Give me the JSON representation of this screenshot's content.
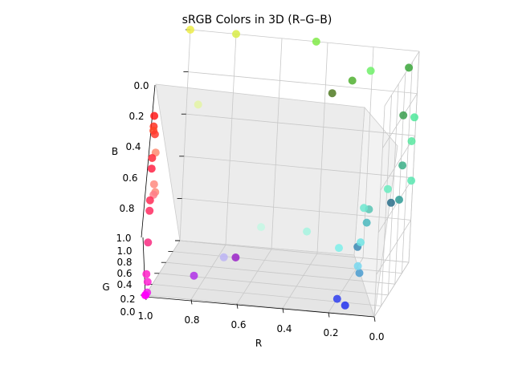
{
  "chart_data": {
    "type": "scatter",
    "title": "sRGB Colors in 3D (R–G–B)",
    "xlabel": "R",
    "ylabel": "G",
    "zlabel": "B",
    "xlim": [
      0,
      1
    ],
    "ylim": [
      0,
      1
    ],
    "zlim": [
      0,
      1
    ],
    "z_inverted": true,
    "grid": true,
    "x_ticks": [
      "0.0",
      "0.2",
      "0.4",
      "0.6",
      "0.8",
      "1.0"
    ],
    "y_ticks": [
      "0.0",
      "0.2",
      "0.4",
      "0.6",
      "0.8",
      "1.0"
    ],
    "z_ticks": [
      "0.0",
      "0.2",
      "0.4",
      "0.6",
      "0.8",
      "1.0"
    ],
    "points": [
      {
        "r": 1.0,
        "g": 1.0,
        "b": 0.0,
        "color": "#ecec48"
      },
      {
        "r": 0.8,
        "g": 1.0,
        "b": 0.0,
        "color": "#d8ec48"
      },
      {
        "r": 0.45,
        "g": 1.0,
        "b": 0.0,
        "color": "#80ea48"
      },
      {
        "r": 0.3,
        "g": 0.5,
        "b": 0.1,
        "color": "#507a22"
      },
      {
        "r": 0.25,
        "g": 0.75,
        "b": 0.1,
        "color": "#50b030"
      },
      {
        "r": 0.2,
        "g": 0.95,
        "b": 0.1,
        "color": "#6ef068"
      },
      {
        "r": 0.95,
        "g": 1.0,
        "b": 0.35,
        "color": "#e4f4a4"
      },
      {
        "r": 0.0,
        "g": 0.7,
        "b": 0.0,
        "color": "#3aa63a"
      },
      {
        "r": 0.0,
        "g": 0.6,
        "b": 0.2,
        "color": "#3a9e4e"
      },
      {
        "r": 0.0,
        "g": 0.95,
        "b": 0.3,
        "color": "#4ee89a"
      },
      {
        "r": 0.0,
        "g": 0.9,
        "b": 0.4,
        "color": "#58e8a0"
      },
      {
        "r": 0.0,
        "g": 0.65,
        "b": 0.45,
        "color": "#3aae86"
      },
      {
        "r": 0.0,
        "g": 0.95,
        "b": 0.6,
        "color": "#5ae8b2"
      },
      {
        "r": 0.0,
        "g": 0.6,
        "b": 0.6,
        "color": "#309c96"
      },
      {
        "r": 0.0,
        "g": 0.35,
        "b": 0.55,
        "color": "#2a6e8a"
      },
      {
        "r": 0.1,
        "g": 0.95,
        "b": 0.65,
        "color": "#68ecc0"
      },
      {
        "r": 0.15,
        "g": 0.75,
        "b": 0.7,
        "color": "#58c4b4"
      },
      {
        "r": 0.15,
        "g": 0.7,
        "b": 0.75,
        "color": "#4ab8be"
      },
      {
        "r": 0.2,
        "g": 0.95,
        "b": 0.75,
        "color": "#6ee8d0"
      },
      {
        "r": 0.15,
        "g": 0.45,
        "b": 0.8,
        "color": "#3a8ab4"
      },
      {
        "r": 0.2,
        "g": 0.9,
        "b": 0.9,
        "color": "#70e4e4"
      },
      {
        "r": 0.15,
        "g": 0.55,
        "b": 0.95,
        "color": "#4a9cd0"
      },
      {
        "r": 0.3,
        "g": 0.95,
        "b": 0.95,
        "color": "#7ef0ea"
      },
      {
        "r": 0.65,
        "g": 1.0,
        "b": 0.9,
        "color": "#c4f8e4"
      },
      {
        "r": 0.45,
        "g": 1.0,
        "b": 0.9,
        "color": "#a6f4e0"
      },
      {
        "r": 0.2,
        "g": 0.85,
        "b": 1.0,
        "color": "#78d8f0"
      },
      {
        "r": 0.2,
        "g": 0.25,
        "b": 1.0,
        "color": "#3040f0"
      },
      {
        "r": 0.15,
        "g": 0.15,
        "b": 1.0,
        "color": "#2233ee"
      },
      {
        "r": 0.75,
        "g": 0.6,
        "b": 0.95,
        "color": "#bcb4f4"
      },
      {
        "r": 0.65,
        "g": 0.25,
        "b": 0.85,
        "color": "#9a22c8"
      },
      {
        "r": 0.8,
        "g": 0.05,
        "b": 0.9,
        "color": "#b030e8"
      },
      {
        "r": 1.0,
        "g": 0.0,
        "b": 0.15,
        "color": "#ff1a1a"
      },
      {
        "r": 1.0,
        "g": 0.0,
        "b": 0.2,
        "color": "#ff3322"
      },
      {
        "r": 1.0,
        "g": 0.0,
        "b": 0.22,
        "color": "#ff4424"
      },
      {
        "r": 1.0,
        "g": 0.05,
        "b": 0.25,
        "color": "#ff3a2e"
      },
      {
        "r": 1.0,
        "g": 0.1,
        "b": 0.35,
        "color": "#ff8a70"
      },
      {
        "r": 1.0,
        "g": 0.0,
        "b": 0.35,
        "color": "#ff2a3a"
      },
      {
        "r": 1.0,
        "g": 0.0,
        "b": 0.4,
        "color": "#ff2244"
      },
      {
        "r": 1.0,
        "g": 0.1,
        "b": 0.5,
        "color": "#ff8a7e"
      },
      {
        "r": 1.0,
        "g": 0.15,
        "b": 0.55,
        "color": "#ff8878"
      },
      {
        "r": 1.0,
        "g": 0.1,
        "b": 0.55,
        "color": "#ff7e88"
      },
      {
        "r": 1.0,
        "g": 0.0,
        "b": 0.55,
        "color": "#ff2a55"
      },
      {
        "r": 1.0,
        "g": 0.0,
        "b": 0.6,
        "color": "#ff2a60"
      },
      {
        "r": 1.0,
        "g": 0.0,
        "b": 0.75,
        "color": "#f82a80"
      },
      {
        "r": 1.0,
        "g": 0.0,
        "b": 0.9,
        "color": "#ff20c8"
      },
      {
        "r": 1.0,
        "g": 0.05,
        "b": 0.95,
        "color": "#ff22d2"
      },
      {
        "r": 1.0,
        "g": 0.0,
        "b": 1.0,
        "color": "#ff1ad0"
      },
      {
        "r": 1.0,
        "g": 0.05,
        "b": 1.0,
        "color": "#f01ae8"
      },
      {
        "r": 1.0,
        "g": 0.0,
        "b": 1.0,
        "color": "#ff00ff"
      }
    ]
  }
}
